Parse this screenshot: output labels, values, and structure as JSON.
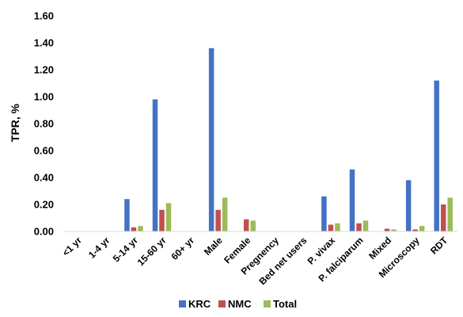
{
  "chart_data": {
    "type": "bar",
    "title": "",
    "xlabel": "",
    "ylabel": "TPR, %",
    "ylim": [
      0,
      1.6
    ],
    "yticks": [
      "0.00",
      "0.20",
      "0.40",
      "0.60",
      "0.80",
      "1.00",
      "1.20",
      "1.40",
      "1.60"
    ],
    "grid": false,
    "legend": "bottom",
    "categories": [
      "<1 yr",
      "1-4 yr",
      "5-14 yr",
      "15-60 yr",
      "60+ yr",
      "Male",
      "Female",
      "Pregnency",
      "Bed net users",
      "P. vivax",
      "P. falciparum",
      "Mixed",
      "Microscopy",
      "RDT"
    ],
    "series": [
      {
        "name": "KRC",
        "color": "#4472C4",
        "values": [
          0,
          0,
          0.24,
          0.98,
          0,
          1.36,
          0,
          0,
          0,
          0.26,
          0.46,
          0,
          0.38,
          1.12
        ]
      },
      {
        "name": "NMC",
        "color": "#C0504D",
        "values": [
          0,
          0,
          0.03,
          0.16,
          0,
          0.16,
          0.09,
          0,
          0,
          0.05,
          0.06,
          0.02,
          0.015,
          0.2
        ]
      },
      {
        "name": "Total",
        "color": "#9BBB59",
        "values": [
          0,
          0,
          0.04,
          0.21,
          0,
          0.25,
          0.08,
          0,
          0,
          0.06,
          0.08,
          0.015,
          0.04,
          0.25
        ]
      }
    ]
  }
}
